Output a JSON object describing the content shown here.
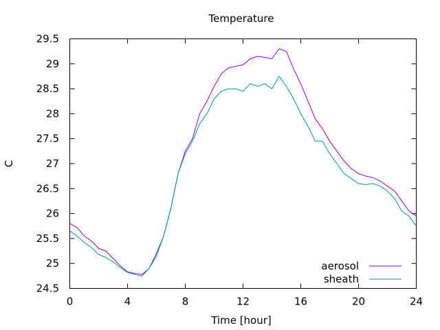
{
  "chart_data": {
    "type": "line",
    "title": "Temperature",
    "xlabel": "Time [hour]",
    "ylabel": "C",
    "xlim": [
      0,
      24
    ],
    "ylim": [
      24.5,
      29.5
    ],
    "x_ticks": [
      0,
      4,
      8,
      12,
      16,
      20,
      24
    ],
    "y_ticks": [
      24.5,
      25,
      25.5,
      26,
      26.5,
      27,
      27.5,
      28,
      28.5,
      29,
      29.5
    ],
    "grid": false,
    "legend_position": "bottom-right",
    "series": [
      {
        "name": "aerosol",
        "color": "#9400d3",
        "x": [
          0,
          0.5,
          1,
          1.5,
          2,
          2.5,
          3,
          3.5,
          4,
          4.5,
          5,
          5.5,
          6,
          6.5,
          7,
          7.5,
          8,
          8.5,
          9,
          9.5,
          10,
          10.5,
          11,
          11.5,
          12,
          12.5,
          13,
          13.5,
          14,
          14.5,
          15,
          15.5,
          16,
          16.5,
          17,
          17.5,
          18,
          18.5,
          19,
          19.5,
          20,
          20.5,
          21,
          21.5,
          22,
          22.5,
          23,
          23.5,
          24
        ],
        "y": [
          25.8,
          25.72,
          25.55,
          25.45,
          25.3,
          25.25,
          25.1,
          24.95,
          24.83,
          24.8,
          24.78,
          24.9,
          25.2,
          25.55,
          26.1,
          26.8,
          27.25,
          27.5,
          28.0,
          28.25,
          28.55,
          28.8,
          28.92,
          28.95,
          28.98,
          29.1,
          29.15,
          29.13,
          29.1,
          29.3,
          29.25,
          28.9,
          28.6,
          28.25,
          27.9,
          27.7,
          27.45,
          27.25,
          27.05,
          26.9,
          26.8,
          26.75,
          26.72,
          26.65,
          26.55,
          26.45,
          26.25,
          26.05,
          25.95
        ]
      },
      {
        "name": "sheath",
        "color": "#009e73",
        "x": [
          0,
          0.5,
          1,
          1.5,
          2,
          2.5,
          3,
          3.5,
          4,
          4.5,
          5,
          5.5,
          6,
          6.5,
          7,
          7.5,
          8,
          8.5,
          9,
          9.5,
          10,
          10.5,
          11,
          11.5,
          12,
          12.5,
          13,
          13.5,
          14,
          14.5,
          15,
          15.5,
          16,
          16.5,
          17,
          17.5,
          18,
          18.5,
          19,
          19.5,
          20,
          20.5,
          21,
          21.5,
          22,
          22.5,
          23,
          23.5,
          24
        ],
        "y": [
          25.65,
          25.55,
          25.42,
          25.32,
          25.18,
          25.12,
          25.03,
          24.92,
          24.82,
          24.78,
          24.75,
          24.9,
          25.15,
          25.55,
          26.1,
          26.8,
          27.2,
          27.45,
          27.8,
          28.0,
          28.3,
          28.45,
          28.5,
          28.5,
          28.45,
          28.6,
          28.55,
          28.6,
          28.5,
          28.75,
          28.55,
          28.3,
          28.0,
          27.75,
          27.45,
          27.45,
          27.2,
          27.0,
          26.8,
          26.7,
          26.6,
          26.58,
          26.6,
          26.55,
          26.45,
          26.3,
          26.05,
          25.95,
          25.75
        ]
      }
    ]
  }
}
